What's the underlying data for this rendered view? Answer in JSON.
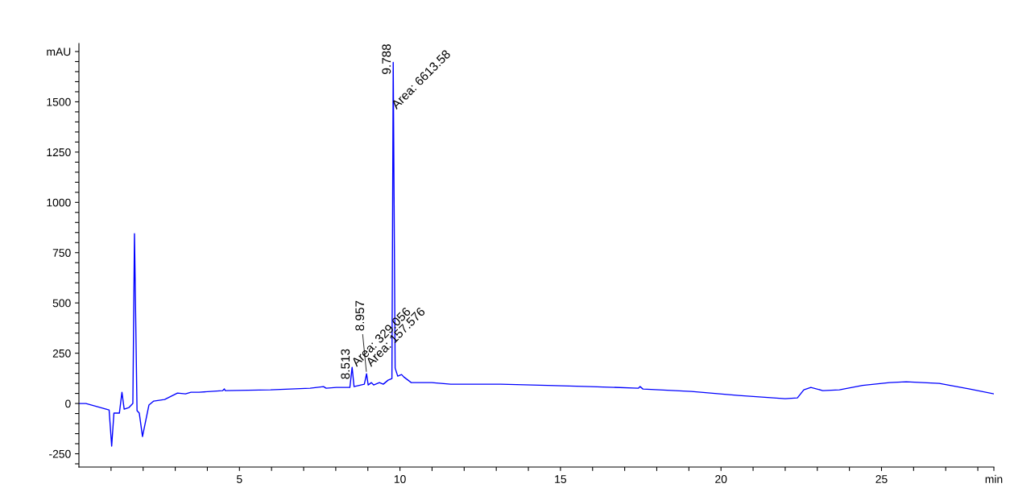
{
  "chart_data": {
    "type": "line",
    "x": [
      0,
      0.22,
      0.94,
      1.02,
      1.09,
      1.26,
      1.34,
      1.41,
      1.56,
      1.68,
      1.73,
      1.81,
      1.88,
      1.98,
      2.18,
      2.33,
      2.67,
      3.07,
      3.32,
      3.49,
      3.74,
      4.48,
      4.53,
      4.56,
      5.97,
      7.2,
      7.62,
      7.7,
      8.02,
      8.44,
      8.51,
      8.57,
      8.89,
      8.96,
      9.01,
      9.11,
      9.18,
      9.36,
      9.48,
      9.63,
      9.75,
      9.79,
      9.85,
      9.93,
      10.05,
      10.12,
      10.35,
      10.74,
      10.99,
      11.58,
      12.4,
      13.14,
      14.6,
      15.94,
      17.43,
      17.48,
      17.57,
      19.08,
      20.55,
      22.0,
      22.38,
      22.58,
      22.8,
      23.17,
      23.69,
      24.41,
      25.25,
      25.77,
      26.8,
      27.75,
      28.5
    ],
    "series": [
      {
        "color": "#0000ff",
        "values": [
          0,
          0,
          -32,
          -212,
          -48,
          -48,
          56,
          -28,
          -20,
          0,
          844,
          -36,
          -48,
          -164,
          -8,
          12,
          20,
          52,
          48,
          56,
          56,
          64,
          72,
          64,
          68,
          76,
          84,
          76,
          80,
          80,
          180,
          84,
          96,
          148,
          92,
          104,
          92,
          104,
          96,
          116,
          124,
          1696,
          176,
          136,
          144,
          132,
          104,
          104,
          104,
          96,
          96,
          96,
          90,
          84,
          76,
          84,
          72,
          60,
          40,
          24,
          28,
          68,
          80,
          64,
          68,
          90,
          104,
          108,
          100,
          72,
          48
        ]
      }
    ],
    "xlim": [
      0,
      28.5
    ],
    "ylim": [
      -316,
      1790
    ],
    "xticks": [
      {
        "value": 1,
        "label": null
      },
      {
        "value": 2,
        "label": null
      },
      {
        "value": 3,
        "label": null
      },
      {
        "value": 4,
        "label": null
      },
      5,
      {
        "value": 6,
        "label": null
      },
      {
        "value": 7,
        "label": null
      },
      {
        "value": 8,
        "label": null
      },
      {
        "value": 9,
        "label": null
      },
      10,
      {
        "value": 11,
        "label": null
      },
      {
        "value": 12,
        "label": null
      },
      {
        "value": 13,
        "label": null
      },
      {
        "value": 14,
        "label": null
      },
      15,
      {
        "value": 16,
        "label": null
      },
      {
        "value": 17,
        "label": null
      },
      {
        "value": 18,
        "label": null
      },
      {
        "value": 19,
        "label": null
      },
      20,
      {
        "value": 21,
        "label": null
      },
      {
        "value": 22,
        "label": null
      },
      {
        "value": 23,
        "label": null
      },
      {
        "value": 24,
        "label": null
      },
      25,
      {
        "value": 26,
        "label": null
      },
      {
        "value": 27,
        "label": null
      },
      {
        "value": 28,
        "label": null
      },
      {
        "value": 28.5,
        "label": "min"
      }
    ],
    "yticks": [
      {
        "value": -300,
        "label": null
      },
      -250,
      {
        "value": -200,
        "label": null
      },
      {
        "value": -150,
        "label": null
      },
      {
        "value": -100,
        "label": null
      },
      {
        "value": -50,
        "label": null
      },
      0,
      {
        "value": 50,
        "label": null
      },
      {
        "value": 100,
        "label": null
      },
      {
        "value": 150,
        "label": null
      },
      {
        "value": 200,
        "label": null
      },
      250,
      {
        "value": 300,
        "label": null
      },
      {
        "value": 350,
        "label": null
      },
      {
        "value": 400,
        "label": null
      },
      {
        "value": 450,
        "label": null
      },
      500,
      {
        "value": 550,
        "label": null
      },
      {
        "value": 600,
        "label": null
      },
      {
        "value": 650,
        "label": null
      },
      {
        "value": 700,
        "label": null
      },
      750,
      {
        "value": 800,
        "label": null
      },
      {
        "value": 850,
        "label": null
      },
      {
        "value": 900,
        "label": null
      },
      {
        "value": 950,
        "label": null
      },
      1000,
      {
        "value": 1050,
        "label": null
      },
      {
        "value": 1100,
        "label": null
      },
      {
        "value": 1150,
        "label": null
      },
      {
        "value": 1200,
        "label": null
      },
      1250,
      {
        "value": 1300,
        "label": null
      },
      {
        "value": 1350,
        "label": null
      },
      {
        "value": 1400,
        "label": null
      },
      {
        "value": 1450,
        "label": null
      },
      1500,
      {
        "value": 1550,
        "label": null
      },
      {
        "value": 1600,
        "label": null
      },
      {
        "value": 1650,
        "label": null
      },
      {
        "value": 1700,
        "label": null
      },
      {
        "value": 1750,
        "label": "mAU"
      }
    ],
    "annotations": [
      {
        "text": "8.513",
        "x": 8.51,
        "y": 180
      },
      {
        "text": "Area: 329.056",
        "x": 8.51,
        "y": 180
      },
      {
        "text": "8.957",
        "x": 8.96,
        "y": 148
      },
      {
        "text": "Area: 157.576",
        "x": 8.96,
        "y": 148
      },
      {
        "text": "9.788",
        "x": 9.79,
        "y": 1696
      },
      {
        "text": "Area: 6613.58",
        "x": 9.8,
        "y": 1452
      }
    ],
    "grid": false,
    "legend": false,
    "marker": "none",
    "line_style": "solid"
  }
}
